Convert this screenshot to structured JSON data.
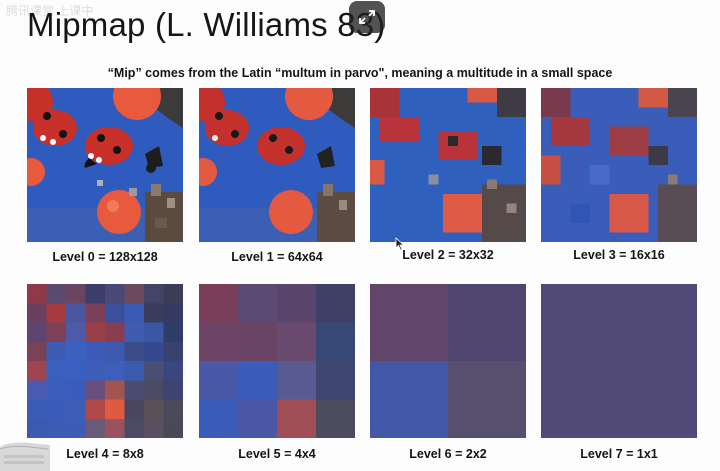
{
  "slide": {
    "title": "Mipmap (L. Williams 83)",
    "subtitle": "“Mip” comes from the Latin “multum in parvo\", meaning a multitude in a small space",
    "watermark": "腾讯课堂 上课中"
  },
  "levels": [
    {
      "label": "Level 0 = 128x128"
    },
    {
      "label": "Level 1 = 64x64"
    },
    {
      "label": "Level 2 = 32x32"
    },
    {
      "label": "Level 3 = 16x16"
    },
    {
      "label": "Level 4 = 8x8"
    },
    {
      "label": "Level 5 = 4x4"
    },
    {
      "label": "Level 6 = 2x2"
    },
    {
      "label": "Level 7 = 1x1"
    }
  ],
  "icons": {
    "exit_fullscreen": "exit-fullscreen-icon",
    "cursor": "mouse-cursor-icon"
  },
  "colors": {
    "board_blue": "#2f5bbf",
    "ladybug_red": "#c8302a",
    "orange_ball": "#e85a3e",
    "level7_avg": "#514a76"
  }
}
